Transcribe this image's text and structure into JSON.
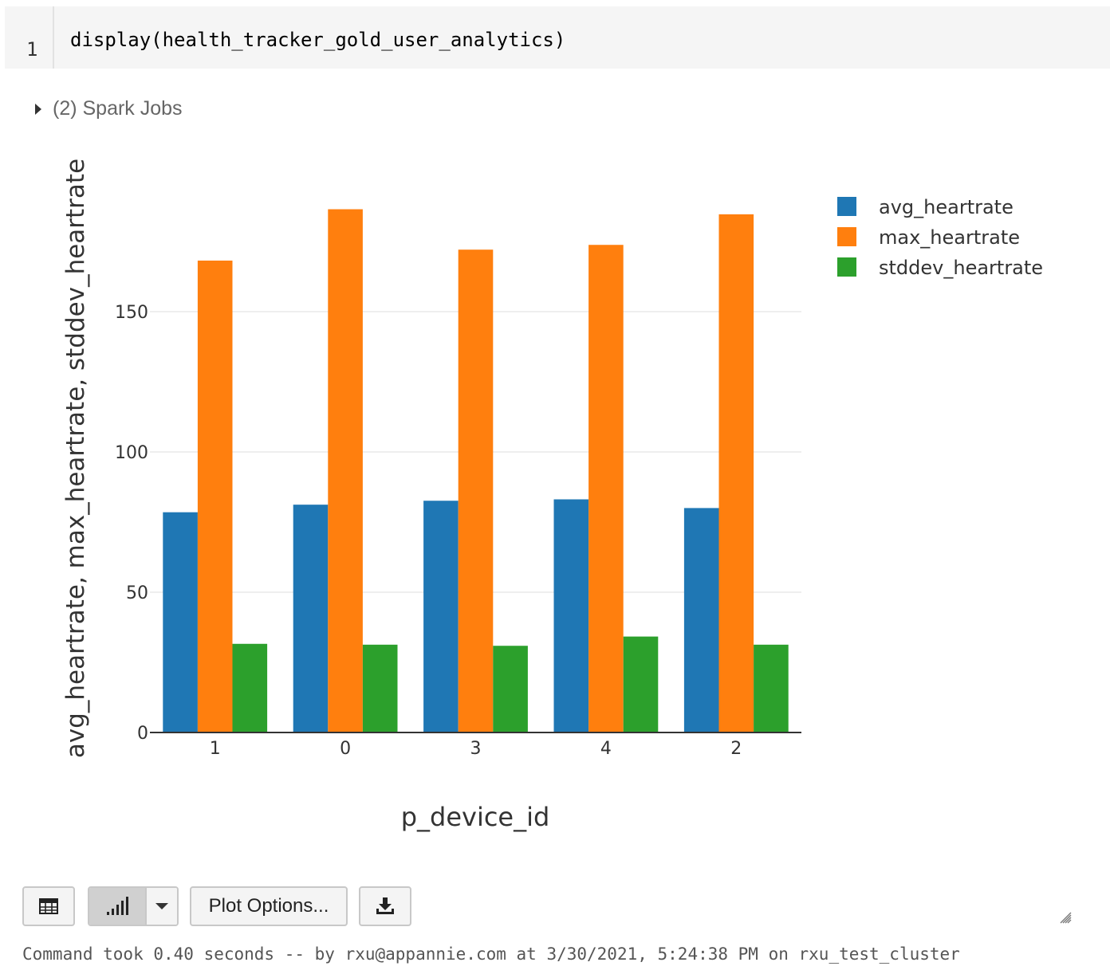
{
  "code_cell": {
    "line_number": "1",
    "code": "display(health_tracker_gold_user_analytics)"
  },
  "spark_jobs": {
    "label": "(2) Spark Jobs"
  },
  "chart_data": {
    "type": "bar",
    "categories": [
      "1",
      "0",
      "3",
      "4",
      "2"
    ],
    "series": [
      {
        "name": "avg_heartrate",
        "color": "#1f77b4",
        "values": [
          78.5,
          81.2,
          82.6,
          83.1,
          80.0
        ]
      },
      {
        "name": "max_heartrate",
        "color": "#ff7f0e",
        "values": [
          168.2,
          186.5,
          172.1,
          173.8,
          184.7
        ]
      },
      {
        "name": "stddev_heartrate",
        "color": "#2ca02c",
        "values": [
          31.6,
          31.3,
          30.9,
          34.2,
          31.3
        ]
      }
    ],
    "xlabel": "p_device_id",
    "ylabel": "avg_heartrate, max_heartrate, stddev_heartrate",
    "ylim": [
      0,
      195
    ],
    "yticks": [
      0,
      50,
      100,
      150
    ],
    "grid": true,
    "legend": "top-right"
  },
  "toolbar": {
    "table_icon": "table-icon",
    "chart_icon": "bar-chart-icon",
    "dropdown_icon": "caret-down-icon",
    "plot_options_label": "Plot Options...",
    "download_icon": "download-icon"
  },
  "status": {
    "text": "Command took 0.40 seconds -- by rxu@appannie.com at 3/30/2021, 5:24:38 PM on rxu_test_cluster"
  }
}
